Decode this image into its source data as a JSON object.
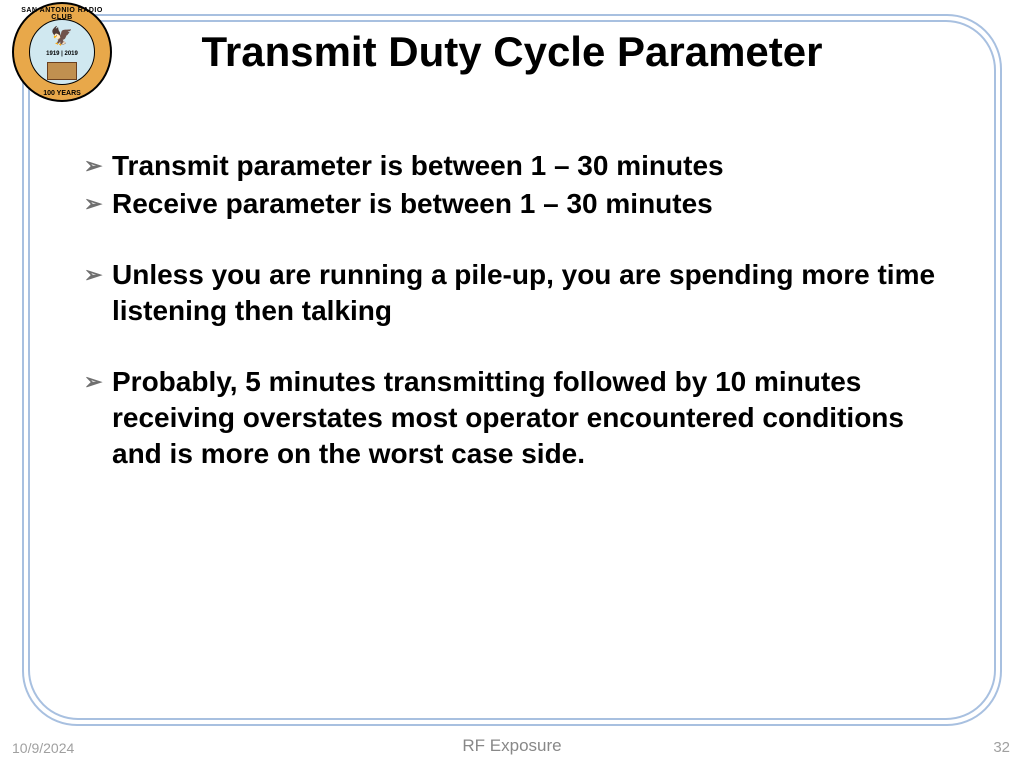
{
  "logo": {
    "org_top": "SAN ANTONIO RADIO CLUB",
    "org_bottom": "100 YEARS",
    "years": "1919 | 2019",
    "colors": {
      "outer_ring": "#e8a84a",
      "inner_circle": "#d0e8f0",
      "border": "#000000"
    }
  },
  "title": "Transmit Duty Cycle Parameter",
  "bullets": [
    {
      "text": "Transmit parameter is between 1 – 30 minutes",
      "spaced": false
    },
    {
      "text": "Receive parameter is between 1 – 30 minutes",
      "spaced": false
    },
    {
      "text": "Unless you are running a pile-up, you are spending more time listening then talking",
      "spaced": true
    },
    {
      "text": "Probably, 5 minutes transmitting followed by 10 minutes receiving overstates most operator encountered conditions and is more on the worst case side.",
      "spaced": true
    }
  ],
  "footer": {
    "date": "10/9/2024",
    "title": "RF Exposure",
    "page": "32"
  },
  "styling": {
    "border_color": "#a8c0e0",
    "bullet_marker_color": "#707070",
    "title_fontsize": 42,
    "body_fontsize": 28,
    "background_color": "#ffffff"
  }
}
